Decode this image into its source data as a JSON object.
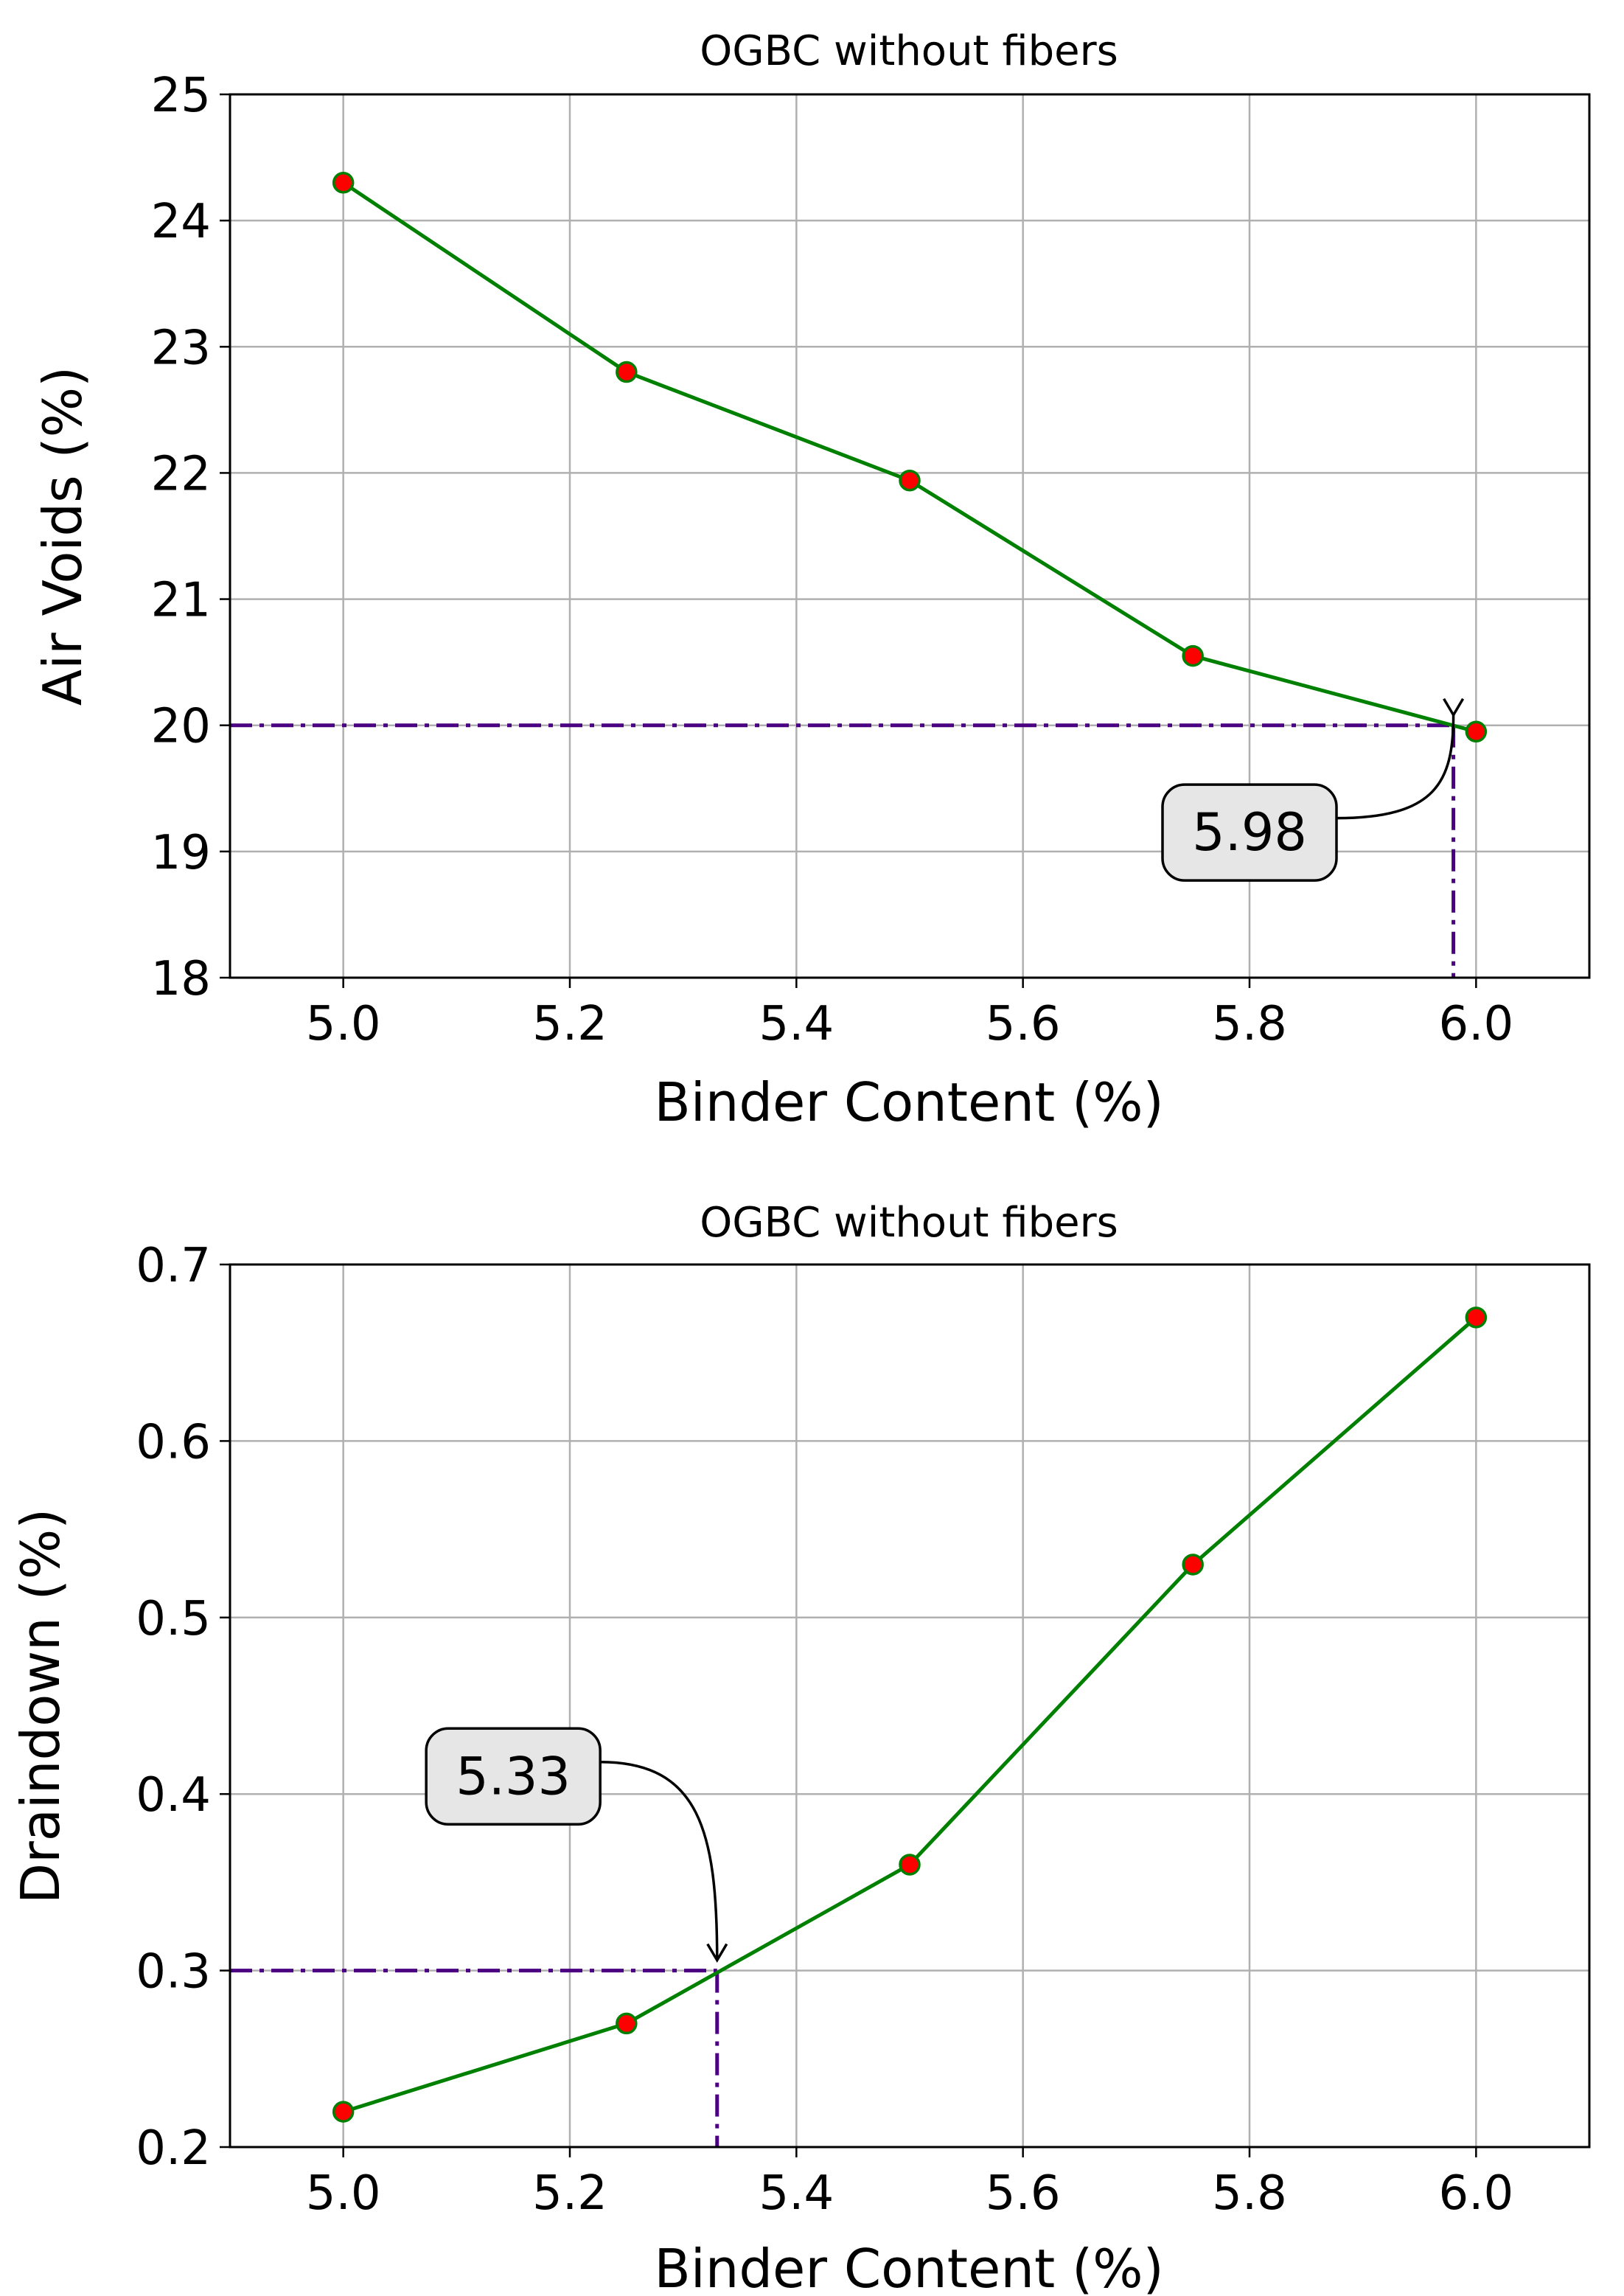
{
  "colors": {
    "line": "#008000",
    "marker_face": "#ff0000",
    "marker_edge": "#008000",
    "reference_line": "#4b0082",
    "grid": "#b0b0b0",
    "annotation_box": "#e6e6e6"
  },
  "chart_data": [
    {
      "type": "line",
      "title": "OGBC without fibers",
      "xlabel": "Binder Content (%)",
      "ylabel": "Air Voids (%)",
      "x": [
        5.0,
        5.25,
        5.5,
        5.75,
        6.0
      ],
      "series": [
        {
          "values": [
            24.3,
            22.8,
            21.94,
            20.55,
            19.95
          ]
        }
      ],
      "xlim": [
        4.9,
        6.1
      ],
      "ylim": [
        18,
        25
      ],
      "xticks": [
        5.0,
        5.2,
        5.4,
        5.6,
        5.8,
        6.0
      ],
      "xtick_labels": [
        "5.0",
        "5.2",
        "5.4",
        "5.6",
        "5.8",
        "6.0"
      ],
      "yticks": [
        18,
        19,
        20,
        21,
        22,
        23,
        24,
        25
      ],
      "ytick_labels": [
        "18",
        "19",
        "20",
        "21",
        "22",
        "23",
        "24",
        "25"
      ],
      "grid": true,
      "reference": {
        "y": 20,
        "x": 5.98
      },
      "annotation": {
        "text": "5.98",
        "x": 5.98,
        "y": 20,
        "text_x": 5.8,
        "text_y": 19.15
      }
    },
    {
      "type": "line",
      "title": "OGBC without fibers",
      "xlabel": "Binder Content (%)",
      "ylabel": "Draindown (%)",
      "x": [
        5.0,
        5.25,
        5.5,
        5.75,
        6.0
      ],
      "series": [
        {
          "values": [
            0.22,
            0.27,
            0.36,
            0.53,
            0.67
          ]
        }
      ],
      "xlim": [
        4.9,
        6.1
      ],
      "ylim": [
        0.2,
        0.7
      ],
      "xticks": [
        5.0,
        5.2,
        5.4,
        5.6,
        5.8,
        6.0
      ],
      "xtick_labels": [
        "5.0",
        "5.2",
        "5.4",
        "5.6",
        "5.8",
        "6.0"
      ],
      "yticks": [
        0.2,
        0.3,
        0.4,
        0.5,
        0.6,
        0.7
      ],
      "ytick_labels": [
        "0.2",
        "0.3",
        "0.4",
        "0.5",
        "0.6",
        "0.7"
      ],
      "grid": true,
      "reference": {
        "y": 0.3,
        "x": 5.33
      },
      "annotation": {
        "text": "5.33",
        "x": 5.33,
        "y": 0.3,
        "text_x": 5.15,
        "text_y": 0.41
      }
    }
  ]
}
